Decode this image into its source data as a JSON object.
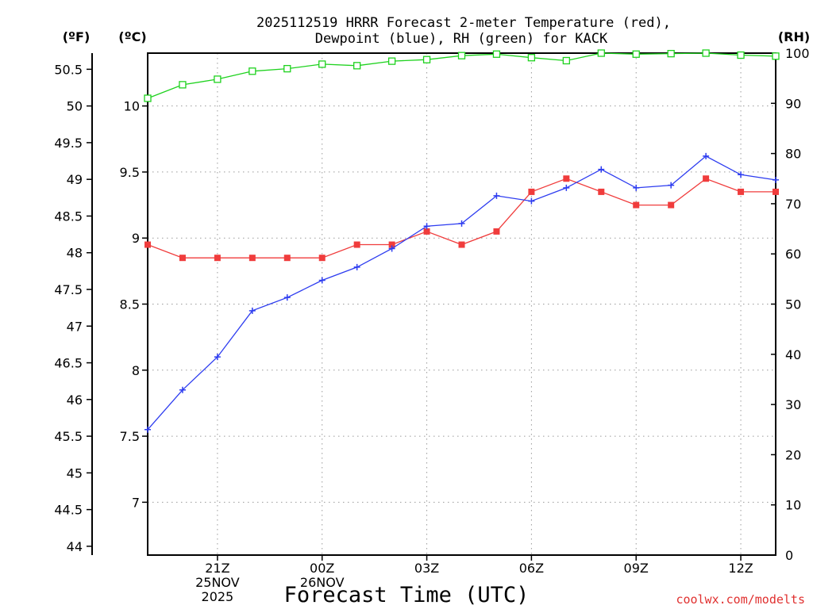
{
  "chart_data": {
    "type": "line",
    "title_line1": "2025112519 HRRR Forecast 2-meter Temperature (red),",
    "title_line2": "Dewpoint (blue), RH (green) for KACK",
    "units": {
      "f": "(ºF)",
      "c": "(ºC)",
      "rh": "(RH)"
    },
    "xlabel": "Forecast Time (UTC)",
    "credit": "coolwx.com/modelts",
    "x_hours": [
      19,
      20,
      21,
      22,
      23,
      24,
      25,
      26,
      27,
      28,
      29,
      30,
      31,
      32,
      33,
      34,
      35,
      36,
      37
    ],
    "xlim": [
      19,
      37
    ],
    "x_ticks": [
      {
        "hour": 21,
        "label": "21Z",
        "sub1": "25NOV",
        "sub2": "2025"
      },
      {
        "hour": 24,
        "label": "00Z",
        "sub1": "26NOV",
        "sub2": ""
      },
      {
        "hour": 27,
        "label": "03Z",
        "sub1": "",
        "sub2": ""
      },
      {
        "hour": 30,
        "label": "06Z",
        "sub1": "",
        "sub2": ""
      },
      {
        "hour": 33,
        "label": "09Z",
        "sub1": "",
        "sub2": ""
      },
      {
        "hour": 36,
        "label": "12Z",
        "sub1": "",
        "sub2": ""
      }
    ],
    "celsius_axis": {
      "ylim": [
        6.6,
        10.4
      ],
      "ticks": [
        7,
        7.5,
        8,
        8.5,
        9,
        9.5,
        10
      ],
      "tick_labels": [
        "7",
        "7.5",
        "8",
        "8.5",
        "9",
        "9.5",
        "10"
      ]
    },
    "fahrenheit_axis": {
      "ticks": [
        44,
        44.5,
        45,
        45.5,
        46,
        46.5,
        47,
        47.5,
        48,
        48.5,
        49,
        49.5,
        50,
        50.5
      ],
      "tick_labels": [
        "44",
        "44.5",
        "45",
        "45.5",
        "46",
        "46.5",
        "47",
        "47.5",
        "48",
        "48.5",
        "49",
        "49.5",
        "50",
        "50.5"
      ]
    },
    "rh_axis": {
      "ylim": [
        0,
        100
      ],
      "ticks": [
        0,
        10,
        20,
        30,
        40,
        50,
        60,
        70,
        80,
        90,
        100
      ],
      "tick_labels": [
        "0",
        "10",
        "20",
        "30",
        "40",
        "50",
        "60",
        "70",
        "80",
        "90",
        "100"
      ]
    },
    "series": [
      {
        "name": "Temperature",
        "units": "C",
        "color": "#f03c3c",
        "marker": "filled-square",
        "values": [
          8.95,
          8.85,
          8.85,
          8.85,
          8.85,
          8.85,
          8.95,
          8.95,
          9.05,
          8.95,
          9.05,
          9.35,
          9.45,
          9.35,
          9.25,
          9.25,
          9.45,
          9.35,
          9.35
        ]
      },
      {
        "name": "Dewpoint",
        "units": "C",
        "color": "#2d3cf0",
        "marker": "plus",
        "values": [
          7.55,
          7.85,
          8.1,
          8.45,
          8.55,
          8.68,
          8.78,
          8.92,
          9.09,
          9.11,
          9.32,
          9.28,
          9.38,
          9.52,
          9.38,
          9.4,
          9.62,
          9.48,
          9.44
        ]
      },
      {
        "name": "RH",
        "units": "%",
        "color": "#1ed21e",
        "marker": "open-square",
        "values": [
          91,
          93.7,
          94.8,
          96.4,
          96.9,
          97.8,
          97.5,
          98.4,
          98.7,
          99.5,
          99.8,
          99.1,
          98.5,
          100,
          99.8,
          99.9,
          100,
          99.6,
          99.4
        ]
      }
    ]
  }
}
